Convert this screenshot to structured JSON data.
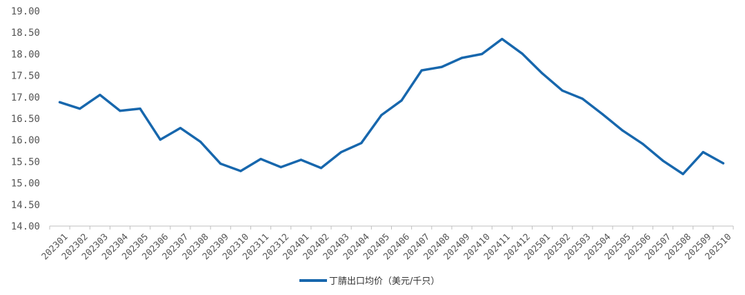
{
  "chart_data": {
    "type": "line",
    "title": "",
    "xlabel": "",
    "ylabel": "",
    "ylim": [
      14.0,
      19.0
    ],
    "yticks": [
      "14.00",
      "14.50",
      "15.00",
      "15.50",
      "16.00",
      "16.50",
      "17.00",
      "17.50",
      "18.00",
      "18.50",
      "19.00"
    ],
    "grid": false,
    "legend_position": "bottom-center",
    "categories": [
      "202301",
      "202302",
      "202303",
      "202304",
      "202305",
      "202306",
      "202307",
      "202308",
      "202309",
      "202310",
      "202311",
      "202312",
      "202401",
      "202402",
      "202403",
      "202404",
      "202405",
      "202406",
      "202407",
      "202408",
      "202409",
      "202410",
      "202411",
      "202412",
      "202501",
      "202502",
      "202503",
      "202504",
      "202505",
      "202506",
      "202507",
      "202508",
      "202509",
      "202510"
    ],
    "series": [
      {
        "name": "丁腈出口均价（美元/千只）",
        "color": "#1767ad",
        "values": [
          16.88,
          16.73,
          17.05,
          16.68,
          16.73,
          16.01,
          16.28,
          15.96,
          15.45,
          15.28,
          15.56,
          15.37,
          15.54,
          15.35,
          15.72,
          15.93,
          16.58,
          16.92,
          17.62,
          17.7,
          17.91,
          18.0,
          18.35,
          18.01,
          17.55,
          17.15,
          16.96,
          16.6,
          16.22,
          15.91,
          15.52,
          15.21,
          15.72,
          15.46
        ]
      }
    ]
  }
}
